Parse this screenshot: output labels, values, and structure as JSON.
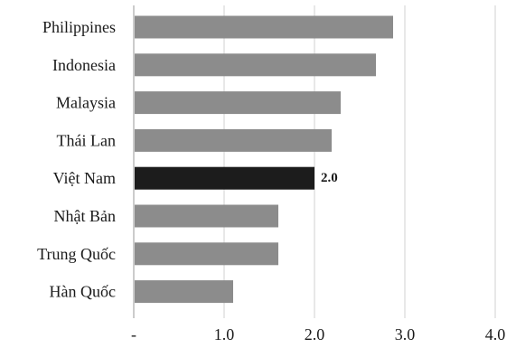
{
  "chart_data": {
    "type": "bar",
    "orientation": "horizontal",
    "categories": [
      "Philippines",
      "Indonesia",
      "Malaysia",
      "Thái Lan",
      "Việt Nam",
      "Nhật Bản",
      "Trung Quốc",
      "Hàn Quốc"
    ],
    "values": [
      2.87,
      2.68,
      2.29,
      2.19,
      2.0,
      1.6,
      1.6,
      1.1
    ],
    "data_labels": [
      {
        "category": "Việt Nam",
        "text": "2.0"
      }
    ],
    "highlight": {
      "category": "Việt Nam",
      "color": "#1c1c1c"
    },
    "bar_color": "#8c8c8c",
    "xticks": [
      {
        "value": 0,
        "label": "-"
      },
      {
        "value": 1,
        "label": "1.0"
      },
      {
        "value": 2,
        "label": "2.0"
      },
      {
        "value": 3,
        "label": "3.0"
      },
      {
        "value": 4,
        "label": "4.0"
      }
    ],
    "xlim": [
      0,
      4
    ],
    "grid": "vertical",
    "title": "",
    "xlabel": "",
    "ylabel": ""
  }
}
